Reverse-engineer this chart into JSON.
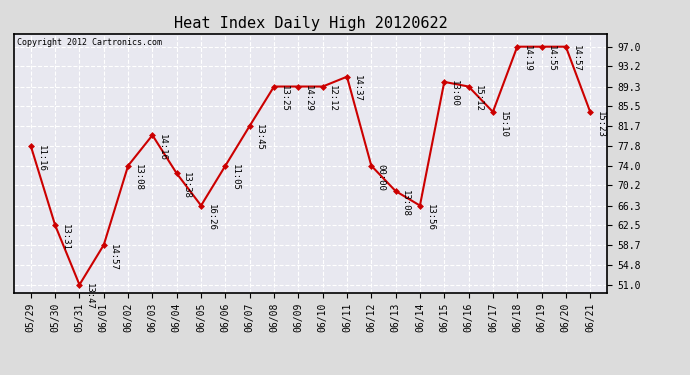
{
  "title": "Heat Index Daily High 20120622",
  "copyright": "Copyright 2012 Cartronics.com",
  "x_labels": [
    "05/29",
    "05/30",
    "05/31",
    "06/01",
    "06/02",
    "06/03",
    "06/04",
    "06/05",
    "06/06",
    "06/07",
    "06/08",
    "06/09",
    "06/10",
    "06/11",
    "06/12",
    "06/13",
    "06/14",
    "06/15",
    "06/16",
    "06/17",
    "06/18",
    "06/19",
    "06/20",
    "06/21"
  ],
  "y_values": [
    77.8,
    62.5,
    51.0,
    58.7,
    74.0,
    79.9,
    72.5,
    66.3,
    74.0,
    81.7,
    89.3,
    89.3,
    89.3,
    91.2,
    74.0,
    69.1,
    66.3,
    90.2,
    89.3,
    84.4,
    97.0,
    97.0,
    97.0,
    84.4
  ],
  "time_labels": [
    "11:16",
    "13:31",
    "13:47",
    "14:57",
    "13:08",
    "14:16",
    "13:38",
    "16:26",
    "11:05",
    "13:45",
    "13:25",
    "14:29",
    "12:12",
    "14:37",
    "00:00",
    "13:08",
    "13:56",
    "13:00",
    "15:12",
    "15:10",
    "14:19",
    "14:55",
    "14:57",
    "15:23"
  ],
  "y_ticks": [
    51.0,
    54.8,
    58.7,
    62.5,
    66.3,
    70.2,
    74.0,
    77.8,
    81.7,
    85.5,
    89.3,
    93.2,
    97.0
  ],
  "ylim": [
    49.5,
    99.5
  ],
  "line_color": "#cc0000",
  "marker_color": "#cc0000",
  "bg_color": "#dcdcdc",
  "plot_bg_color": "#e8e8f0",
  "grid_color": "#ffffff",
  "title_fontsize": 11,
  "tick_fontsize": 7,
  "label_fontsize": 6.5
}
